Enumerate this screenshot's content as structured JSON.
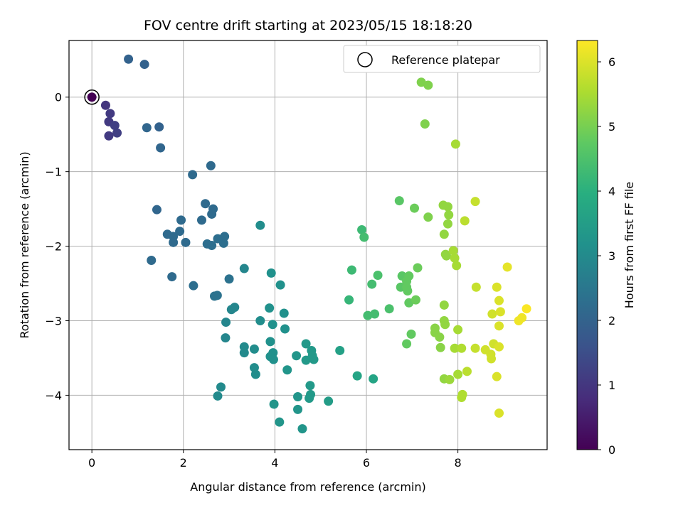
{
  "chart_data": {
    "type": "scatter",
    "title": "FOV centre drift starting at 2023/05/15 18:18:20",
    "xlabel": "Angular distance from reference (arcmin)",
    "ylabel": "Rotation from reference (arcmin)",
    "colorbar_label": "Hours from first FF file",
    "xlim": [
      -0.5,
      9.95
    ],
    "ylim": [
      -4.73,
      0.76
    ],
    "xticks": [
      0,
      2,
      4,
      6,
      8
    ],
    "yticks": [
      0,
      -1,
      -2,
      -3,
      -4
    ],
    "colorbar_range": [
      0,
      6.33
    ],
    "colorbar_ticks": [
      0,
      1,
      2,
      3,
      4,
      5,
      6
    ],
    "colormap": "viridis",
    "grid": true,
    "legend": {
      "label": "Reference platepar",
      "placement": "top-right"
    },
    "reference_point": {
      "x": 0,
      "y": 0,
      "c": 0
    },
    "points": [
      {
        "x": 0.3,
        "y": -0.11,
        "c": 1.0
      },
      {
        "x": 0.4,
        "y": -0.22,
        "c": 1.1
      },
      {
        "x": 0.37,
        "y": -0.33,
        "c": 1.1
      },
      {
        "x": 0.5,
        "y": -0.38,
        "c": 1.2
      },
      {
        "x": 0.55,
        "y": -0.48,
        "c": 1.2
      },
      {
        "x": 0.37,
        "y": -0.52,
        "c": 1.1
      },
      {
        "x": 0.8,
        "y": 0.51,
        "c": 2.0
      },
      {
        "x": 1.15,
        "y": 0.44,
        "c": 2.0
      },
      {
        "x": 1.2,
        "y": -0.41,
        "c": 2.1
      },
      {
        "x": 1.47,
        "y": -0.4,
        "c": 2.0
      },
      {
        "x": 1.5,
        "y": -0.68,
        "c": 2.1
      },
      {
        "x": 2.2,
        "y": -1.04,
        "c": 2.2
      },
      {
        "x": 2.6,
        "y": -0.92,
        "c": 2.2
      },
      {
        "x": 1.42,
        "y": -1.51,
        "c": 2.1
      },
      {
        "x": 2.48,
        "y": -1.43,
        "c": 2.2
      },
      {
        "x": 2.65,
        "y": -1.5,
        "c": 2.2
      },
      {
        "x": 2.62,
        "y": -1.57,
        "c": 2.2
      },
      {
        "x": 2.4,
        "y": -1.65,
        "c": 2.2
      },
      {
        "x": 1.95,
        "y": -1.65,
        "c": 2.2
      },
      {
        "x": 1.92,
        "y": -1.8,
        "c": 2.2
      },
      {
        "x": 1.65,
        "y": -1.84,
        "c": 2.2
      },
      {
        "x": 1.78,
        "y": -1.87,
        "c": 2.2
      },
      {
        "x": 1.78,
        "y": -1.95,
        "c": 2.2
      },
      {
        "x": 2.05,
        "y": -1.95,
        "c": 2.2
      },
      {
        "x": 2.52,
        "y": -1.97,
        "c": 2.3
      },
      {
        "x": 2.62,
        "y": -1.99,
        "c": 2.3
      },
      {
        "x": 2.88,
        "y": -1.96,
        "c": 2.3
      },
      {
        "x": 2.9,
        "y": -1.87,
        "c": 2.3
      },
      {
        "x": 2.75,
        "y": -1.9,
        "c": 2.3
      },
      {
        "x": 1.3,
        "y": -2.19,
        "c": 2.2
      },
      {
        "x": 1.75,
        "y": -2.41,
        "c": 2.2
      },
      {
        "x": 2.22,
        "y": -2.53,
        "c": 2.3
      },
      {
        "x": 2.68,
        "y": -2.67,
        "c": 2.4
      },
      {
        "x": 2.74,
        "y": -2.66,
        "c": 2.4
      },
      {
        "x": 3.0,
        "y": -2.44,
        "c": 2.4
      },
      {
        "x": 3.33,
        "y": -2.3,
        "c": 2.9
      },
      {
        "x": 3.05,
        "y": -2.85,
        "c": 2.9
      },
      {
        "x": 3.12,
        "y": -2.82,
        "c": 2.9
      },
      {
        "x": 2.93,
        "y": -3.02,
        "c": 2.9
      },
      {
        "x": 2.92,
        "y": -3.23,
        "c": 2.9
      },
      {
        "x": 3.33,
        "y": -3.35,
        "c": 3.0
      },
      {
        "x": 3.33,
        "y": -3.43,
        "c": 3.0
      },
      {
        "x": 3.55,
        "y": -3.38,
        "c": 3.1
      },
      {
        "x": 3.68,
        "y": -1.72,
        "c": 3.1
      },
      {
        "x": 3.55,
        "y": -3.63,
        "c": 3.1
      },
      {
        "x": 3.58,
        "y": -3.72,
        "c": 3.1
      },
      {
        "x": 2.82,
        "y": -3.89,
        "c": 3.0
      },
      {
        "x": 2.75,
        "y": -4.01,
        "c": 3.0
      },
      {
        "x": 3.68,
        "y": -3.0,
        "c": 3.1
      },
      {
        "x": 3.92,
        "y": -2.36,
        "c": 3.2
      },
      {
        "x": 4.12,
        "y": -2.52,
        "c": 3.2
      },
      {
        "x": 3.88,
        "y": -2.83,
        "c": 3.2
      },
      {
        "x": 4.2,
        "y": -2.9,
        "c": 3.2
      },
      {
        "x": 3.95,
        "y": -3.05,
        "c": 3.2
      },
      {
        "x": 4.22,
        "y": -3.11,
        "c": 3.2
      },
      {
        "x": 3.9,
        "y": -3.28,
        "c": 3.2
      },
      {
        "x": 3.96,
        "y": -3.43,
        "c": 3.2
      },
      {
        "x": 3.9,
        "y": -3.48,
        "c": 3.2
      },
      {
        "x": 3.97,
        "y": -3.52,
        "c": 3.2
      },
      {
        "x": 4.47,
        "y": -3.47,
        "c": 3.3
      },
      {
        "x": 4.27,
        "y": -3.66,
        "c": 3.3
      },
      {
        "x": 3.98,
        "y": -4.12,
        "c": 3.3
      },
      {
        "x": 4.1,
        "y": -4.36,
        "c": 3.3
      },
      {
        "x": 4.5,
        "y": -4.02,
        "c": 3.3
      },
      {
        "x": 4.5,
        "y": -4.19,
        "c": 3.3
      },
      {
        "x": 4.6,
        "y": -4.45,
        "c": 3.3
      },
      {
        "x": 4.68,
        "y": -3.31,
        "c": 3.4
      },
      {
        "x": 4.8,
        "y": -3.4,
        "c": 3.4
      },
      {
        "x": 4.82,
        "y": -3.47,
        "c": 3.4
      },
      {
        "x": 4.68,
        "y": -3.53,
        "c": 3.4
      },
      {
        "x": 4.85,
        "y": -3.52,
        "c": 3.4
      },
      {
        "x": 4.77,
        "y": -3.87,
        "c": 3.4
      },
      {
        "x": 4.78,
        "y": -3.99,
        "c": 3.4
      },
      {
        "x": 4.75,
        "y": -4.04,
        "c": 3.4
      },
      {
        "x": 5.17,
        "y": -4.08,
        "c": 3.5
      },
      {
        "x": 5.42,
        "y": -3.4,
        "c": 3.6
      },
      {
        "x": 5.8,
        "y": -3.74,
        "c": 3.7
      },
      {
        "x": 6.15,
        "y": -3.78,
        "c": 3.7
      },
      {
        "x": 5.62,
        "y": -2.72,
        "c": 4.2
      },
      {
        "x": 5.68,
        "y": -2.32,
        "c": 4.3
      },
      {
        "x": 5.9,
        "y": -1.78,
        "c": 4.3
      },
      {
        "x": 5.95,
        "y": -1.88,
        "c": 4.4
      },
      {
        "x": 6.03,
        "y": -2.93,
        "c": 4.4
      },
      {
        "x": 6.12,
        "y": -2.51,
        "c": 4.4
      },
      {
        "x": 6.18,
        "y": -2.91,
        "c": 4.4
      },
      {
        "x": 6.25,
        "y": -2.39,
        "c": 4.5
      },
      {
        "x": 6.5,
        "y": -2.84,
        "c": 4.5
      },
      {
        "x": 6.72,
        "y": -1.39,
        "c": 4.7
      },
      {
        "x": 6.75,
        "y": -2.55,
        "c": 4.7
      },
      {
        "x": 6.78,
        "y": -2.4,
        "c": 4.7
      },
      {
        "x": 6.88,
        "y": -2.47,
        "c": 4.8
      },
      {
        "x": 6.88,
        "y": -2.55,
        "c": 4.8
      },
      {
        "x": 6.9,
        "y": -2.6,
        "c": 4.8
      },
      {
        "x": 6.93,
        "y": -2.4,
        "c": 4.8
      },
      {
        "x": 6.93,
        "y": -2.76,
        "c": 4.8
      },
      {
        "x": 6.88,
        "y": -3.31,
        "c": 4.8
      },
      {
        "x": 6.98,
        "y": -3.18,
        "c": 4.8
      },
      {
        "x": 7.08,
        "y": -2.72,
        "c": 4.9
      },
      {
        "x": 7.12,
        "y": -2.29,
        "c": 4.9
      },
      {
        "x": 7.05,
        "y": -1.49,
        "c": 4.9
      },
      {
        "x": 7.2,
        "y": 0.2,
        "c": 5.1
      },
      {
        "x": 7.35,
        "y": 0.16,
        "c": 5.1
      },
      {
        "x": 7.28,
        "y": -0.36,
        "c": 5.1
      },
      {
        "x": 7.35,
        "y": -1.61,
        "c": 5.1
      },
      {
        "x": 7.5,
        "y": -3.1,
        "c": 5.2
      },
      {
        "x": 7.5,
        "y": -3.16,
        "c": 5.2
      },
      {
        "x": 7.6,
        "y": -3.22,
        "c": 5.2
      },
      {
        "x": 7.62,
        "y": -3.36,
        "c": 5.2
      },
      {
        "x": 7.7,
        "y": -3.0,
        "c": 5.3
      },
      {
        "x": 7.72,
        "y": -3.05,
        "c": 5.3
      },
      {
        "x": 7.7,
        "y": -2.79,
        "c": 5.3
      },
      {
        "x": 7.68,
        "y": -1.45,
        "c": 5.3
      },
      {
        "x": 7.78,
        "y": -1.47,
        "c": 5.3
      },
      {
        "x": 7.8,
        "y": -1.58,
        "c": 5.3
      },
      {
        "x": 7.78,
        "y": -1.7,
        "c": 5.3
      },
      {
        "x": 7.7,
        "y": -1.84,
        "c": 5.3
      },
      {
        "x": 7.73,
        "y": -2.11,
        "c": 5.3
      },
      {
        "x": 7.75,
        "y": -2.13,
        "c": 5.3
      },
      {
        "x": 7.7,
        "y": -3.78,
        "c": 5.3
      },
      {
        "x": 7.82,
        "y": -3.79,
        "c": 5.4
      },
      {
        "x": 7.9,
        "y": -2.06,
        "c": 5.5
      },
      {
        "x": 7.93,
        "y": -2.16,
        "c": 5.5
      },
      {
        "x": 7.97,
        "y": -2.26,
        "c": 5.5
      },
      {
        "x": 7.95,
        "y": -0.63,
        "c": 5.5
      },
      {
        "x": 7.93,
        "y": -3.37,
        "c": 5.5
      },
      {
        "x": 8.0,
        "y": -3.12,
        "c": 5.5
      },
      {
        "x": 8.0,
        "y": -3.72,
        "c": 5.5
      },
      {
        "x": 8.08,
        "y": -3.37,
        "c": 5.6
      },
      {
        "x": 8.1,
        "y": -3.99,
        "c": 5.6
      },
      {
        "x": 8.08,
        "y": -4.03,
        "c": 5.6
      },
      {
        "x": 8.15,
        "y": -1.66,
        "c": 5.7
      },
      {
        "x": 8.2,
        "y": -3.68,
        "c": 5.7
      },
      {
        "x": 8.38,
        "y": -1.4,
        "c": 5.8
      },
      {
        "x": 8.38,
        "y": -3.37,
        "c": 5.8
      },
      {
        "x": 8.4,
        "y": -2.55,
        "c": 5.8
      },
      {
        "x": 8.6,
        "y": -3.39,
        "c": 5.9
      },
      {
        "x": 8.72,
        "y": -3.45,
        "c": 5.9
      },
      {
        "x": 8.73,
        "y": -3.51,
        "c": 5.9
      },
      {
        "x": 8.75,
        "y": -2.91,
        "c": 5.9
      },
      {
        "x": 8.78,
        "y": -3.31,
        "c": 5.9
      },
      {
        "x": 8.85,
        "y": -2.55,
        "c": 6.0
      },
      {
        "x": 8.85,
        "y": -3.75,
        "c": 6.0
      },
      {
        "x": 8.9,
        "y": -2.73,
        "c": 6.0
      },
      {
        "x": 8.9,
        "y": -3.07,
        "c": 6.0
      },
      {
        "x": 8.9,
        "y": -3.35,
        "c": 6.0
      },
      {
        "x": 8.93,
        "y": -2.88,
        "c": 6.0
      },
      {
        "x": 8.9,
        "y": -4.24,
        "c": 6.0
      },
      {
        "x": 9.08,
        "y": -2.28,
        "c": 6.1
      },
      {
        "x": 9.33,
        "y": -3.0,
        "c": 6.2
      },
      {
        "x": 9.4,
        "y": -2.96,
        "c": 6.2
      },
      {
        "x": 9.5,
        "y": -2.84,
        "c": 6.3
      }
    ]
  }
}
